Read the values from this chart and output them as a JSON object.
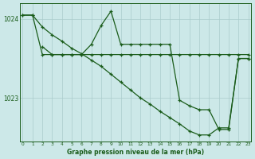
{
  "background_color": "#cce8e8",
  "grid_color": "#aacccc",
  "line_color": "#1a5c1a",
  "title": "Graphe pression niveau de la mer (hPa)",
  "yticks": [
    1023,
    1024
  ],
  "xticks": [
    0,
    1,
    2,
    3,
    4,
    5,
    6,
    7,
    8,
    9,
    10,
    11,
    12,
    13,
    14,
    15,
    16,
    17,
    18,
    19,
    20,
    21,
    22,
    23
  ],
  "xlim": [
    -0.3,
    23.3
  ],
  "ylim": [
    1022.45,
    1024.2
  ],
  "series_flat_x": [
    0,
    1,
    2,
    3,
    4,
    5,
    6,
    7,
    8,
    9,
    10,
    11,
    12,
    13,
    14,
    15,
    16,
    17,
    18,
    19,
    20,
    21,
    22,
    23
  ],
  "series_flat_y": [
    1024.05,
    1024.05,
    1023.55,
    1023.55,
    1023.55,
    1023.55,
    1023.55,
    1023.55,
    1023.55,
    1023.55,
    1023.55,
    1023.55,
    1023.55,
    1023.55,
    1023.55,
    1023.55,
    1023.55,
    1023.55,
    1023.55,
    1023.55,
    1023.55,
    1023.55,
    1023.55,
    1023.55
  ],
  "series_jagged_x": [
    2,
    3,
    4,
    5,
    6,
    7,
    8,
    9,
    10,
    11,
    12,
    13,
    14,
    15,
    16,
    17,
    18,
    19,
    20,
    21,
    22,
    23
  ],
  "series_jagged_y": [
    1023.65,
    1023.55,
    1023.55,
    1023.55,
    1023.55,
    1023.68,
    1023.92,
    1024.1,
    1023.68,
    1023.68,
    1023.68,
    1023.68,
    1023.68,
    1023.68,
    1022.97,
    1022.9,
    1022.85,
    1022.85,
    1022.6,
    1022.6,
    1023.5,
    1023.5
  ],
  "series_diag_x": [
    0,
    1,
    2,
    3,
    4,
    5,
    6,
    7,
    8,
    9,
    10,
    11,
    12,
    13,
    14,
    15,
    16,
    17,
    18,
    19,
    20,
    21,
    22,
    23
  ],
  "series_diag_y": [
    1024.05,
    1024.05,
    1023.9,
    1023.8,
    1023.72,
    1023.63,
    1023.56,
    1023.48,
    1023.4,
    1023.3,
    1023.2,
    1023.1,
    1023.0,
    1022.92,
    1022.83,
    1022.75,
    1022.67,
    1022.58,
    1022.53,
    1022.53,
    1022.62,
    1022.62,
    1023.5,
    1023.5
  ]
}
